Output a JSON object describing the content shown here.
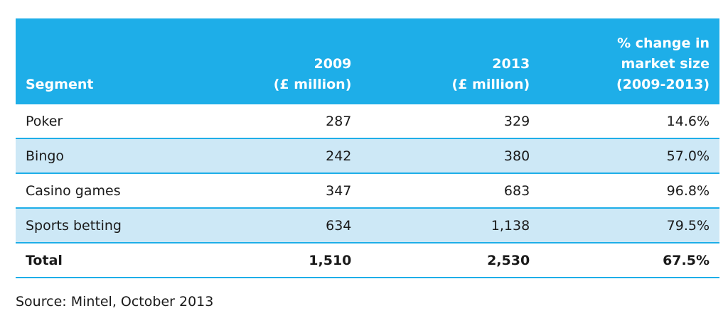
{
  "table": {
    "headers": {
      "segment": "Segment",
      "col_2009": [
        "2009",
        "(£ million)"
      ],
      "col_2013": [
        "2013",
        "(£ million)"
      ],
      "col_pct": [
        "% change in",
        "market size",
        "(2009-2013)"
      ]
    },
    "rows": [
      {
        "segment": "Poker",
        "v2009": "287",
        "v2013": "329",
        "pct": "14.6%"
      },
      {
        "segment": "Bingo",
        "v2009": "242",
        "v2013": "380",
        "pct": "57.0%"
      },
      {
        "segment": "Casino games",
        "v2009": "347",
        "v2013": "683",
        "pct": "96.8%"
      },
      {
        "segment": "Sports betting",
        "v2009": "634",
        "v2013": "1,138",
        "pct": "79.5%"
      }
    ],
    "total": {
      "segment": "Total",
      "v2009": "1,510",
      "v2013": "2,530",
      "pct": "67.5%"
    }
  },
  "source": "Source: Mintel, October 2013",
  "colors": {
    "header_bg": "#1eaee8",
    "alt_row_bg": "#cde8f6",
    "rule": "#1eaee8"
  }
}
